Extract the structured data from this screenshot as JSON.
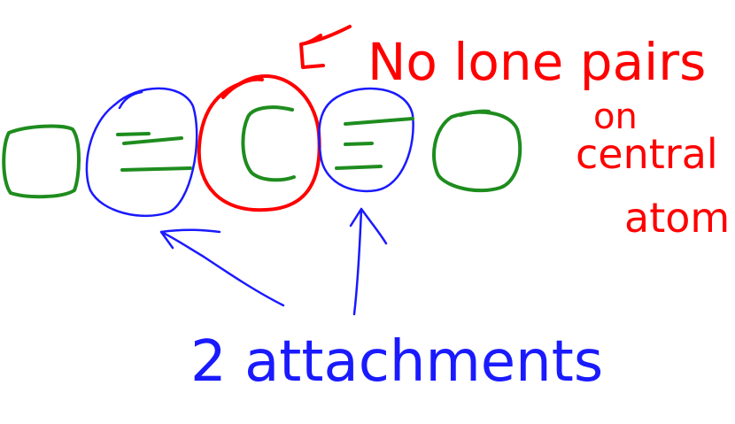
{
  "annotation_top": {
    "line1": "No lone pairs",
    "line2": "on",
    "line3": "central",
    "line4": "atom",
    "color": "#ff0000"
  },
  "annotation_bottom": {
    "text": "2 attachments",
    "color": "#1a1aff"
  },
  "colors": {
    "atom_outline": "#1e8c1e",
    "attachment_highlight": "#1a1aff",
    "central_highlight": "#ff0000",
    "background": "#ffffff"
  }
}
